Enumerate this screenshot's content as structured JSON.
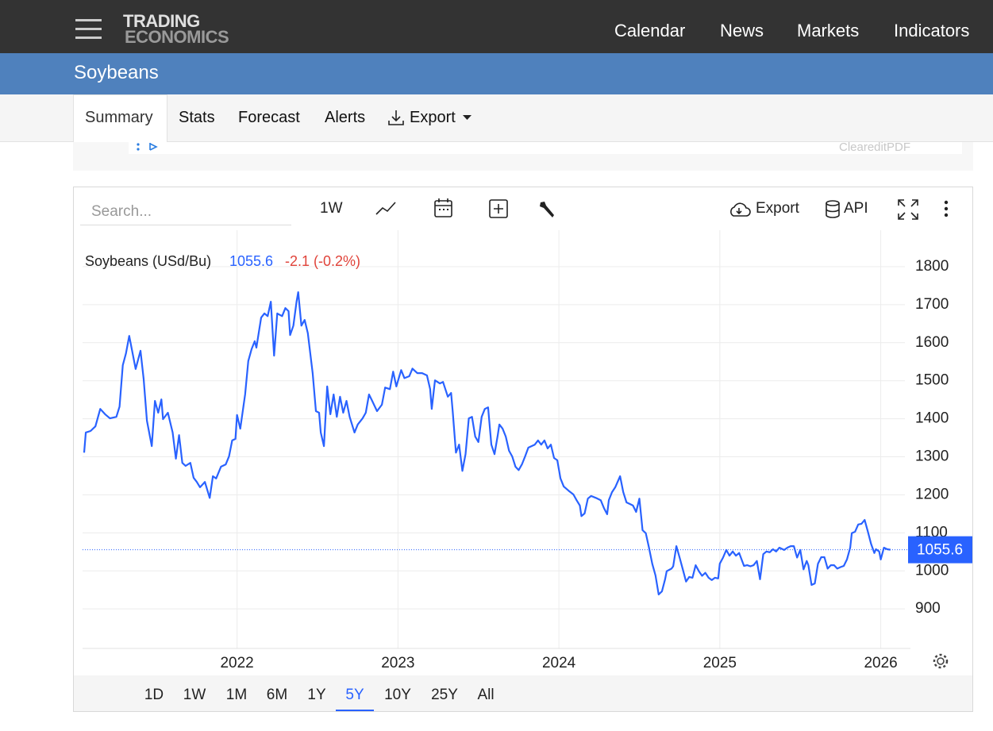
{
  "header": {
    "logo_top": "TRADING",
    "logo_bottom": "ECONOMICS",
    "nav": [
      "Calendar",
      "News",
      "Markets",
      "Indicators"
    ]
  },
  "page_title": "Soybeans",
  "tabs": [
    "Summary",
    "Stats",
    "Forecast",
    "Alerts",
    "Export"
  ],
  "banner_text": "CleareditPDF",
  "toolbar": {
    "search_placeholder": "Search...",
    "interval": "1W",
    "export": "Export",
    "api": "API"
  },
  "chart_data": {
    "type": "line",
    "change": "-2.1 (-0.2%)",
    "change_color": "#e0433a",
    "x": [
      2021.05,
      2021.06,
      2021.09,
      2021.12,
      2021.15,
      2021.18,
      2021.21,
      2021.25,
      2021.27,
      2021.29,
      2021.31,
      2021.33,
      2021.37,
      2021.4,
      2021.42,
      2021.44,
      2021.47,
      2021.49,
      2021.51,
      2021.53,
      2021.54,
      2021.57,
      2021.6,
      2021.62,
      2021.64,
      2021.66,
      2021.68,
      2021.71,
      2021.73,
      2021.75,
      2021.77,
      2021.8,
      2021.83,
      2021.85,
      2021.87,
      2021.9,
      2021.93,
      2021.95,
      2021.97,
      2021.99,
      2022.0,
      2022.02,
      2022.05,
      2022.07,
      2022.09,
      2022.11,
      2022.12,
      2022.15,
      2022.17,
      2022.19,
      2022.21,
      2022.23,
      2022.25,
      2022.28,
      2022.3,
      2022.32,
      2022.33,
      2022.35,
      2022.37,
      2022.38,
      2022.4,
      2022.42,
      2022.44,
      2022.47,
      2022.49,
      2022.51,
      2022.52,
      2022.54,
      2022.56,
      2022.58,
      2022.6,
      2022.62,
      2022.64,
      2022.66,
      2022.68,
      2022.7,
      2022.73,
      2022.75,
      2022.78,
      2022.8,
      2022.82,
      2022.84,
      2022.87,
      2022.9,
      2022.92,
      2022.95,
      2022.97,
      2022.99,
      2023.02,
      2023.04,
      2023.07,
      2023.09,
      2023.12,
      2023.15,
      2023.18,
      2023.2,
      2023.21,
      2023.23,
      2023.26,
      2023.28,
      2023.31,
      2023.33,
      2023.34,
      2023.36,
      2023.38,
      2023.4,
      2023.42,
      2023.44,
      2023.46,
      2023.48,
      2023.5,
      2023.52,
      2023.54,
      2023.56,
      2023.58,
      2023.6,
      2023.62,
      2023.63,
      2023.65,
      2023.67,
      2023.69,
      2023.71,
      2023.73,
      2023.75,
      2023.77,
      2023.79,
      2023.81,
      2023.83,
      2023.85,
      2023.87,
      2023.89,
      2023.91,
      2023.93,
      2023.95,
      2023.97,
      2023.99,
      2024.01,
      2024.03,
      2024.06,
      2024.09,
      2024.11,
      2024.13,
      2024.14,
      2024.16,
      2024.18,
      2024.2,
      2024.23,
      2024.26,
      2024.28,
      2024.3,
      2024.31,
      2024.33,
      2024.35,
      2024.38,
      2024.4,
      2024.42,
      2024.44,
      2024.46,
      2024.48,
      2024.5,
      2024.52,
      2024.54,
      2024.56,
      2024.58,
      2024.6,
      2024.62,
      2024.64,
      2024.66,
      2024.67,
      2024.7,
      2024.71,
      2024.73,
      2024.75,
      2024.77,
      2024.79,
      2024.81,
      2024.83,
      2024.85,
      2024.87,
      2024.89,
      2024.91,
      2024.93,
      2024.95,
      2024.97,
      2024.99,
      2025.0,
      2025.02,
      2025.04,
      2025.06,
      2025.08,
      2025.1,
      2025.12,
      2025.15,
      2025.17,
      2025.19,
      2025.21,
      2025.23,
      2025.25,
      2025.27,
      2025.29,
      2025.31,
      2025.33,
      2025.35,
      2025.37,
      2025.4,
      2025.42,
      2025.44,
      2025.46,
      2025.48,
      2025.5,
      2025.52,
      2025.54,
      2025.55,
      2025.57,
      2025.59,
      2025.61,
      2025.63,
      2025.65,
      2025.67,
      2025.69,
      2025.71,
      2025.73,
      2025.75,
      2025.77,
      2025.79,
      2025.81,
      2025.82,
      2025.84,
      2025.86,
      2025.88,
      2025.9,
      2025.92,
      2025.94,
      2025.96,
      2025.97,
      2025.99,
      2026.0,
      2026.02,
      2026.04,
      2026.06
    ],
    "series": [
      {
        "name": "Soybeans (USd/Bu)",
        "color": "#2962ff",
        "values": [
          1311,
          1364,
          1368,
          1380,
          1426,
          1412,
          1401,
          1405,
          1432,
          1541,
          1572,
          1618,
          1531,
          1579,
          1504,
          1395,
          1328,
          1447,
          1416,
          1451,
          1399,
          1416,
          1364,
          1295,
          1357,
          1284,
          1276,
          1284,
          1245,
          1234,
          1220,
          1234,
          1192,
          1249,
          1243,
          1274,
          1280,
          1301,
          1343,
          1347,
          1410,
          1374,
          1464,
          1552,
          1583,
          1604,
          1587,
          1666,
          1677,
          1670,
          1708,
          1566,
          1677,
          1670,
          1691,
          1683,
          1620,
          1645,
          1708,
          1733,
          1645,
          1660,
          1625,
          1520,
          1420,
          1416,
          1364,
          1328,
          1485,
          1412,
          1464,
          1405,
          1458,
          1416,
          1447,
          1405,
          1364,
          1385,
          1401,
          1416,
          1464,
          1447,
          1420,
          1437,
          1482,
          1478,
          1524,
          1485,
          1528,
          1507,
          1512,
          1532,
          1520,
          1520,
          1514,
          1478,
          1426,
          1501,
          1493,
          1497,
          1458,
          1468,
          1420,
          1311,
          1332,
          1263,
          1307,
          1401,
          1405,
          1353,
          1339,
          1405,
          1426,
          1430,
          1332,
          1307,
          1357,
          1385,
          1374,
          1353,
          1316,
          1301,
          1274,
          1265,
          1280,
          1301,
          1324,
          1328,
          1332,
          1343,
          1332,
          1343,
          1322,
          1332,
          1297,
          1291,
          1243,
          1222,
          1211,
          1201,
          1186,
          1172,
          1144,
          1151,
          1190,
          1197,
          1192,
          1186,
          1165,
          1149,
          1186,
          1207,
          1220,
          1249,
          1207,
          1180,
          1176,
          1172,
          1155,
          1190,
          1107,
          1099,
          1061,
          1019,
          988,
          938,
          946,
          978,
          999,
          1006,
          1012,
          1065,
          1035,
          1004,
          972,
          984,
          982,
          1015,
          999,
          987,
          995,
          982,
          976,
          982,
          980,
          1019,
          1035,
          1055,
          1040,
          1051,
          1040,
          1047,
          1013,
          1015,
          1012,
          1015,
          1026,
          978,
          1044,
          1051,
          1049,
          1057,
          1051,
          1061,
          1055,
          1061,
          1065,
          1065,
          1035,
          1055,
          1004,
          1026,
          1015,
          963,
          967,
          1019,
          1036,
          1036,
          1006,
          1015,
          1015,
          1006,
          1010,
          1013,
          1030,
          1061,
          1099,
          1103,
          1122,
          1124,
          1134,
          1103,
          1071,
          1047,
          1057,
          1051,
          1030,
          1061,
          1057,
          1055.6
        ]
      }
    ],
    "xlim": [
      2021.04,
      2026.15
    ],
    "xticks": [
      2022,
      2023,
      2024,
      2025,
      2026
    ],
    "ylim": [
      796,
      1896
    ],
    "yticks": [
      900,
      1000,
      1100,
      1200,
      1300,
      1400,
      1500,
      1600,
      1700,
      1800
    ],
    "grid": true
  },
  "ranges": [
    "1D",
    "1W",
    "1M",
    "6M",
    "1Y",
    "5Y",
    "10Y",
    "25Y",
    "All"
  ],
  "active_range": 5
}
